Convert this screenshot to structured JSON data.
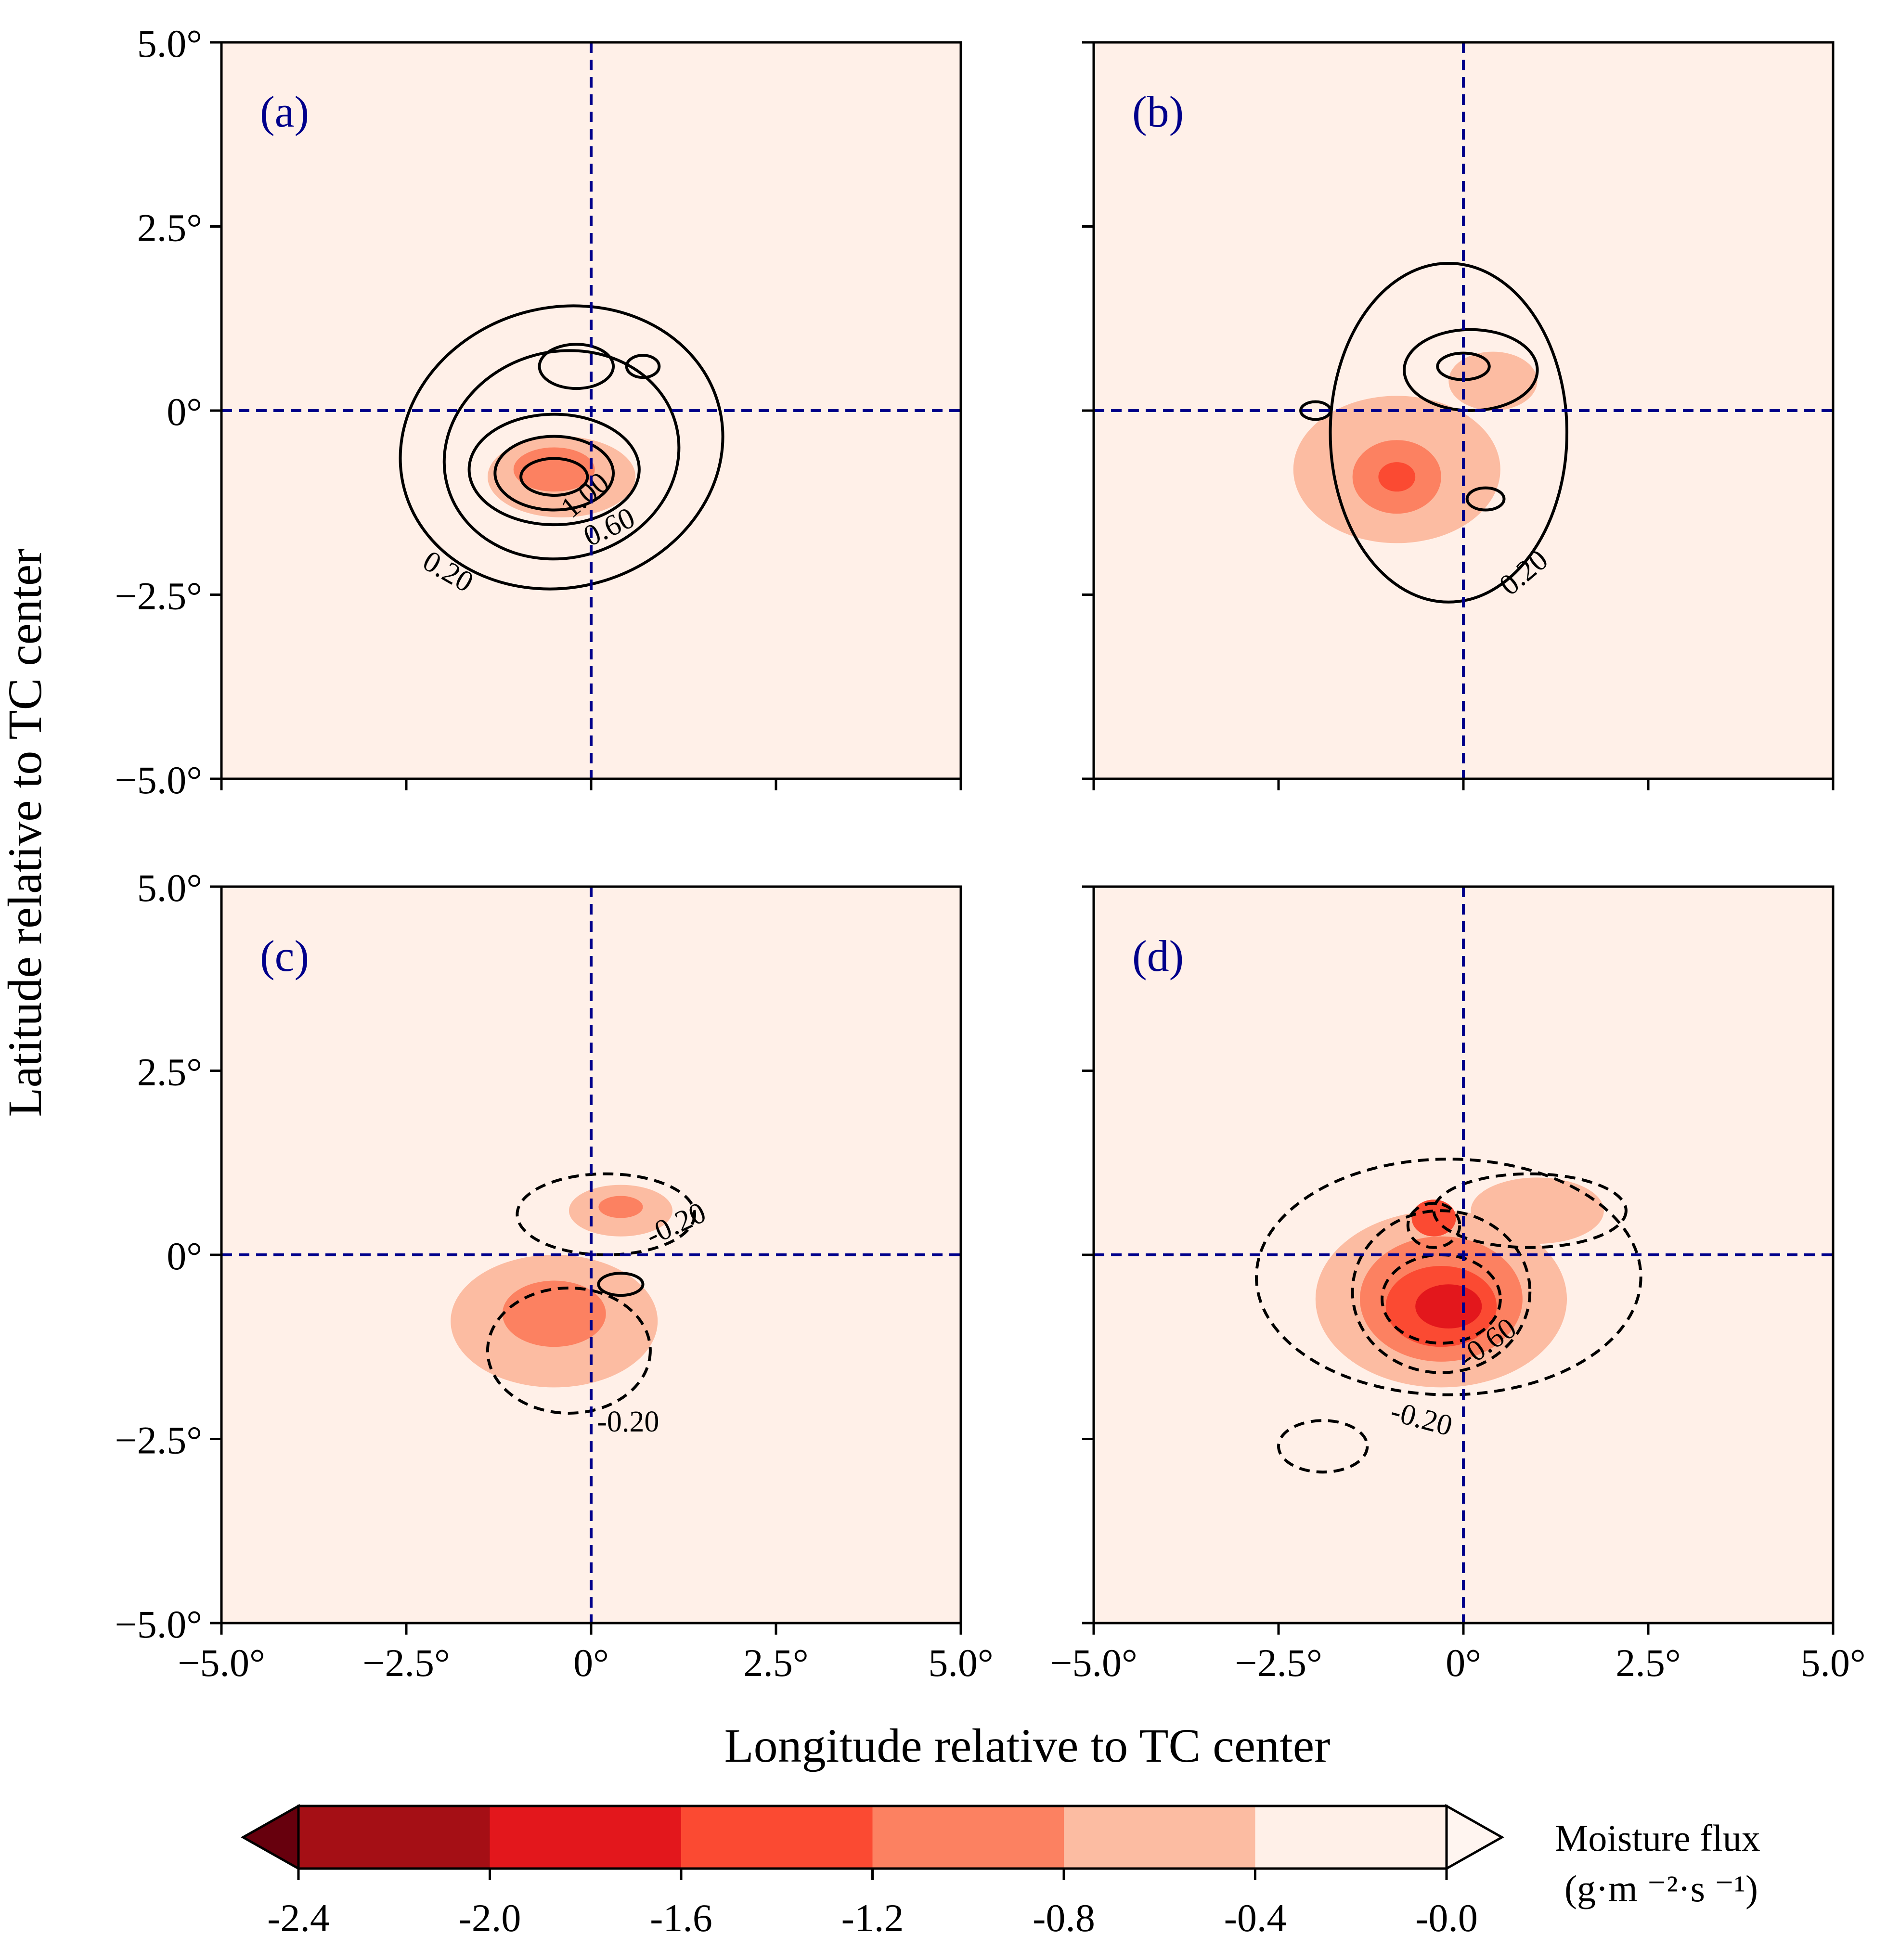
{
  "chart_data": {
    "type": "heatmap",
    "subtype": "filled-contour with line contours, 2x2 panels",
    "xlabel": "Longitude relative to TC center",
    "ylabel": "Latitude relative to TC center",
    "xlim": [
      -5,
      5
    ],
    "ylim": [
      -5,
      5
    ],
    "x_ticks": [
      -5,
      -2.5,
      0,
      2.5,
      5
    ],
    "y_ticks": [
      -5,
      -2.5,
      0,
      2.5,
      5
    ],
    "x_tick_labels": [
      "−5.0°",
      "−2.5°",
      "0°",
      "2.5°",
      "5.0°"
    ],
    "y_tick_labels": [
      "−5.0°",
      "−2.5°",
      "0°",
      "2.5°",
      "5.0°"
    ],
    "reference_lines": {
      "x": 0,
      "y": 0,
      "style": "dashed",
      "color": "#00008b"
    },
    "colorbar": {
      "label_line1": "Moisture flux",
      "label_line2": "(g·m ⁻²·s ⁻¹)",
      "levels": [
        -2.4,
        -2.0,
        -1.6,
        -1.2,
        -0.8,
        -0.4,
        0.0
      ],
      "tick_labels": [
        "-2.4",
        "-2.0",
        "-1.6",
        "-1.2",
        "-0.8",
        "-0.4",
        "-0.0"
      ],
      "colors": [
        "#a50f15",
        "#e3171c",
        "#fb4a32",
        "#fc8161",
        "#fcbca2",
        "#fff0e8"
      ],
      "under_color": "#67000d",
      "over_color": "#fff5f0",
      "extend": "both"
    },
    "panels": [
      {
        "label": "(a)",
        "fill": [
          {
            "cx": -0.4,
            "cy": -0.9,
            "rx": 1.0,
            "ry": 0.55,
            "level": 4
          },
          {
            "cx": -0.5,
            "cy": -0.8,
            "rx": 0.55,
            "ry": 0.3,
            "level": 3
          }
        ],
        "contours": [
          {
            "cx": -0.4,
            "cy": -0.5,
            "rx": 2.2,
            "ry": 1.9,
            "rot": -15,
            "dashed": false
          },
          {
            "cx": -0.4,
            "cy": -0.6,
            "rx": 1.6,
            "ry": 1.4,
            "rot": -15,
            "dashed": false
          },
          {
            "cx": -0.5,
            "cy": -0.8,
            "rx": 1.15,
            "ry": 0.75,
            "dashed": false
          },
          {
            "cx": -0.5,
            "cy": -0.85,
            "rx": 0.8,
            "ry": 0.5,
            "dashed": false
          },
          {
            "cx": -0.5,
            "cy": -0.9,
            "rx": 0.45,
            "ry": 0.25,
            "dashed": false
          },
          {
            "cx": -0.2,
            "cy": 0.6,
            "rx": 0.5,
            "ry": 0.3,
            "dashed": false
          },
          {
            "cx": 0.7,
            "cy": 0.6,
            "rx": 0.22,
            "ry": 0.15,
            "dashed": false
          }
        ],
        "contour_labels": [
          {
            "text": "0.20",
            "x": -2.0,
            "y": -2.3,
            "rot": 30
          },
          {
            "text": "0.60",
            "x": 0.3,
            "y": -1.7,
            "rot": -25
          },
          {
            "text": "1.00",
            "x": 0.0,
            "y": -1.25,
            "rot": -40
          }
        ]
      },
      {
        "label": "(b)",
        "fill": [
          {
            "cx": -0.2,
            "cy": -0.4,
            "rx": 2.5,
            "ry": 1.6,
            "level": 5
          },
          {
            "cx": -0.9,
            "cy": -0.8,
            "rx": 1.4,
            "ry": 1.0,
            "level": 4
          },
          {
            "cx": -0.9,
            "cy": -0.9,
            "rx": 0.6,
            "ry": 0.5,
            "level": 3
          },
          {
            "cx": -0.9,
            "cy": -0.9,
            "rx": 0.25,
            "ry": 0.2,
            "level": 2
          },
          {
            "cx": 0.4,
            "cy": 0.4,
            "rx": 0.6,
            "ry": 0.4,
            "level": 4
          }
        ],
        "contours": [
          {
            "cx": -0.2,
            "cy": -0.3,
            "rx": 1.6,
            "ry": 2.3,
            "dashed": false
          },
          {
            "cx": 0.1,
            "cy": 0.55,
            "rx": 0.9,
            "ry": 0.55,
            "dashed": false
          },
          {
            "cx": 0.0,
            "cy": 0.6,
            "rx": 0.35,
            "ry": 0.18,
            "dashed": false
          },
          {
            "cx": -2.0,
            "cy": 0.0,
            "rx": 0.2,
            "ry": 0.12,
            "dashed": false
          },
          {
            "cx": 0.3,
            "cy": -1.2,
            "rx": 0.25,
            "ry": 0.15,
            "dashed": false
          }
        ],
        "contour_labels": [
          {
            "text": "0.20",
            "x": 0.9,
            "y": -2.3,
            "rot": -40
          }
        ]
      },
      {
        "label": "(c)",
        "fill": [
          {
            "cx": -0.4,
            "cy": -0.3,
            "rx": 2.5,
            "ry": 1.9,
            "level": 5
          },
          {
            "cx": -0.5,
            "cy": -0.9,
            "rx": 1.4,
            "ry": 0.9,
            "level": 4
          },
          {
            "cx": 0.4,
            "cy": 0.6,
            "rx": 0.7,
            "ry": 0.35,
            "level": 4
          },
          {
            "cx": -0.5,
            "cy": -0.8,
            "rx": 0.7,
            "ry": 0.45,
            "level": 3
          },
          {
            "cx": 0.4,
            "cy": 0.65,
            "rx": 0.3,
            "ry": 0.15,
            "level": 3
          }
        ],
        "contours": [
          {
            "cx": 0.2,
            "cy": 0.55,
            "rx": 1.2,
            "ry": 0.55,
            "dashed": true
          },
          {
            "cx": -0.3,
            "cy": -1.3,
            "rx": 1.1,
            "ry": 0.85,
            "dashed": true
          },
          {
            "cx": 0.4,
            "cy": -0.4,
            "rx": 0.3,
            "ry": 0.15,
            "dashed": false
          }
        ],
        "contour_labels": [
          {
            "text": "-0.20",
            "x": 1.2,
            "y": 0.3,
            "rot": -25
          },
          {
            "text": "-0.20",
            "x": 0.5,
            "y": -2.4,
            "rot": 0
          }
        ]
      },
      {
        "label": "(d)",
        "fill": [
          {
            "cx": -0.2,
            "cy": -0.5,
            "rx": 2.8,
            "ry": 2.0,
            "level": 5
          },
          {
            "cx": -0.3,
            "cy": -0.6,
            "rx": 1.7,
            "ry": 1.2,
            "level": 4
          },
          {
            "cx": -0.3,
            "cy": -0.6,
            "rx": 1.1,
            "ry": 0.85,
            "level": 3
          },
          {
            "cx": 1.0,
            "cy": 0.6,
            "rx": 0.9,
            "ry": 0.45,
            "level": 4
          },
          {
            "cx": -0.3,
            "cy": -0.7,
            "rx": 0.75,
            "ry": 0.55,
            "level": 2
          },
          {
            "cx": -0.2,
            "cy": -0.7,
            "rx": 0.45,
            "ry": 0.3,
            "level": 1
          },
          {
            "cx": -0.4,
            "cy": 0.5,
            "rx": 0.3,
            "ry": 0.25,
            "level": 2
          }
        ],
        "contours": [
          {
            "cx": -0.2,
            "cy": -0.3,
            "rx": 2.6,
            "ry": 1.6,
            "dashed": true
          },
          {
            "cx": 0.9,
            "cy": 0.6,
            "rx": 1.3,
            "ry": 0.5,
            "dashed": true
          },
          {
            "cx": -0.3,
            "cy": -0.5,
            "rx": 1.2,
            "ry": 1.1,
            "dashed": true
          },
          {
            "cx": -0.3,
            "cy": -0.6,
            "rx": 0.8,
            "ry": 0.6,
            "dashed": true
          },
          {
            "cx": -0.4,
            "cy": 0.4,
            "rx": 0.35,
            "ry": 0.3,
            "dashed": true
          },
          {
            "cx": -1.9,
            "cy": -2.6,
            "rx": 0.6,
            "ry": 0.35,
            "dashed": true
          }
        ],
        "contour_labels": [
          {
            "text": "-0.20",
            "x": -0.6,
            "y": -2.35,
            "rot": 15
          },
          {
            "text": "-0.60",
            "x": 0.4,
            "y": -1.3,
            "rot": -35
          }
        ]
      }
    ]
  }
}
